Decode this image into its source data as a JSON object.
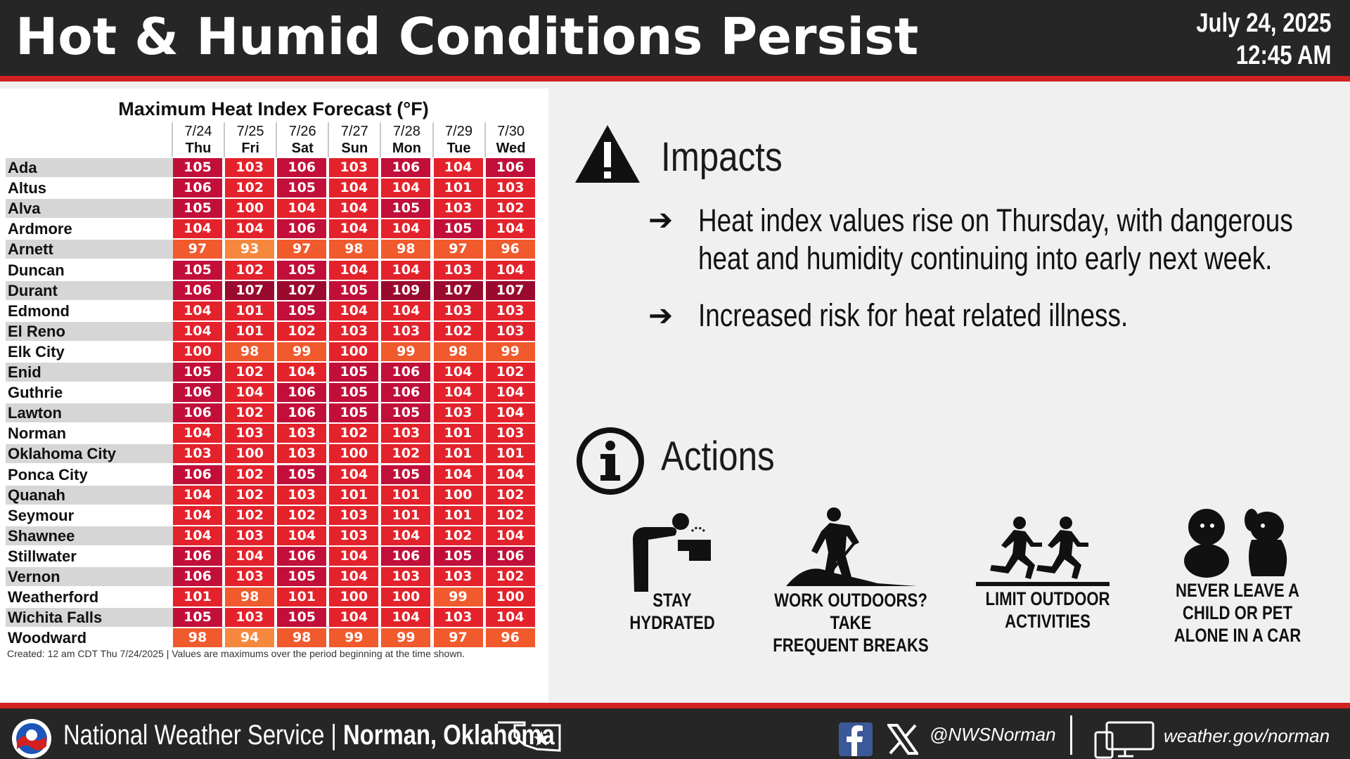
{
  "header": {
    "title": "Hot & Humid Conditions Persist",
    "date": "July 24, 2025",
    "time": "12:45 AM"
  },
  "table": {
    "title": "Maximum Heat Index Forecast (°F)",
    "columns": [
      {
        "date": "7/24",
        "day": "Thu"
      },
      {
        "date": "7/25",
        "day": "Fri"
      },
      {
        "date": "7/26",
        "day": "Sat"
      },
      {
        "date": "7/27",
        "day": "Sun"
      },
      {
        "date": "7/28",
        "day": "Mon"
      },
      {
        "date": "7/29",
        "day": "Tue"
      },
      {
        "date": "7/30",
        "day": "Wed"
      }
    ],
    "rows": [
      {
        "city": "Ada",
        "values": [
          105,
          103,
          106,
          103,
          106,
          104,
          106
        ]
      },
      {
        "city": "Altus",
        "values": [
          106,
          102,
          105,
          104,
          104,
          101,
          103
        ]
      },
      {
        "city": "Alva",
        "values": [
          105,
          100,
          104,
          104,
          105,
          103,
          102
        ]
      },
      {
        "city": "Ardmore",
        "values": [
          104,
          104,
          106,
          104,
          104,
          105,
          104
        ]
      },
      {
        "city": "Arnett",
        "values": [
          97,
          93,
          97,
          98,
          98,
          97,
          96
        ]
      },
      {
        "city": "Duncan",
        "values": [
          105,
          102,
          105,
          104,
          104,
          103,
          104
        ]
      },
      {
        "city": "Durant",
        "values": [
          106,
          107,
          107,
          105,
          109,
          107,
          107
        ]
      },
      {
        "city": "Edmond",
        "values": [
          104,
          101,
          105,
          104,
          104,
          103,
          103
        ]
      },
      {
        "city": "El Reno",
        "values": [
          104,
          101,
          102,
          103,
          103,
          102,
          103
        ]
      },
      {
        "city": "Elk City",
        "values": [
          100,
          98,
          99,
          100,
          99,
          98,
          99
        ]
      },
      {
        "city": "Enid",
        "values": [
          105,
          102,
          104,
          105,
          106,
          104,
          102
        ]
      },
      {
        "city": "Guthrie",
        "values": [
          106,
          104,
          106,
          105,
          106,
          104,
          104
        ]
      },
      {
        "city": "Lawton",
        "values": [
          106,
          102,
          106,
          105,
          105,
          103,
          104
        ]
      },
      {
        "city": "Norman",
        "values": [
          104,
          103,
          103,
          102,
          103,
          101,
          103
        ]
      },
      {
        "city": "Oklahoma City",
        "values": [
          103,
          100,
          103,
          100,
          102,
          101,
          101
        ]
      },
      {
        "city": "Ponca City",
        "values": [
          106,
          102,
          105,
          104,
          105,
          104,
          104
        ]
      },
      {
        "city": "Quanah",
        "values": [
          104,
          102,
          103,
          101,
          101,
          100,
          102
        ]
      },
      {
        "city": "Seymour",
        "values": [
          104,
          102,
          102,
          103,
          101,
          101,
          102
        ]
      },
      {
        "city": "Shawnee",
        "values": [
          104,
          103,
          104,
          103,
          104,
          102,
          104
        ]
      },
      {
        "city": "Stillwater",
        "values": [
          106,
          104,
          106,
          104,
          106,
          105,
          106
        ]
      },
      {
        "city": "Vernon",
        "values": [
          106,
          103,
          105,
          104,
          103,
          103,
          102
        ]
      },
      {
        "city": "Weatherford",
        "values": [
          101,
          98,
          101,
          100,
          100,
          99,
          100
        ]
      },
      {
        "city": "Wichita Falls",
        "values": [
          105,
          103,
          105,
          104,
          104,
          103,
          104
        ]
      },
      {
        "city": "Woodward",
        "values": [
          98,
          94,
          98,
          99,
          99,
          97,
          96
        ]
      }
    ],
    "footnote": "Created: 12 am CDT Thu 7/24/2025  |  Values are maximums over the period beginning at the time shown."
  },
  "colors": {
    "le94": "#f6883e",
    "95_99": "#f05a2d",
    "100_104": "#e3222b",
    "105_106": "#c10f3a",
    "ge107": "#9a0a2e"
  },
  "impacts": {
    "title": "Impacts",
    "icon": "warning-triangle-icon",
    "bullets": [
      [
        "Heat index values rise on Thursday, with dangerous",
        "heat and humidity continuing into early next week."
      ],
      [
        "Increased risk for heat related illness."
      ]
    ]
  },
  "actions": {
    "title": "Actions",
    "icon": "info-circle-icon",
    "items": [
      {
        "icon": "drinking-fountain-icon",
        "lines": [
          "STAY",
          "HYDRATED"
        ]
      },
      {
        "icon": "shoveling-worker-icon",
        "lines": [
          "WORK OUTDOORS? TAKE",
          "FREQUENT BREAKS"
        ]
      },
      {
        "icon": "runners-icon",
        "lines": [
          "LIMIT OUTDOOR",
          "ACTIVITIES"
        ]
      },
      {
        "icon": "child-and-pet-icon",
        "lines": [
          "NEVER LEAVE A",
          "CHILD OR PET",
          "ALONE IN A CAR"
        ]
      }
    ]
  },
  "footer": {
    "agency": "National Weather Service",
    "separator": " | ",
    "office": "Norman, Oklahoma",
    "handle": "@NWSNorman",
    "website": "weather.gov/norman"
  }
}
